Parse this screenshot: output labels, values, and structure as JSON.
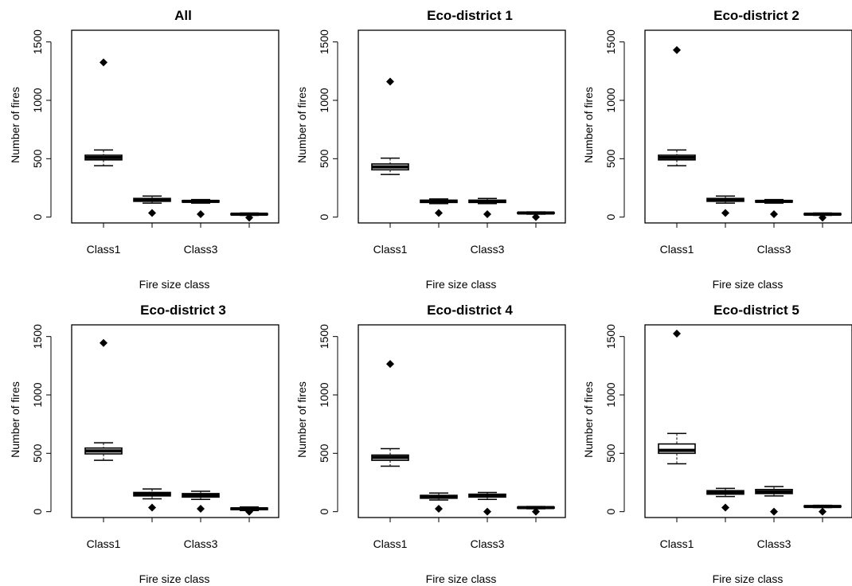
{
  "chart_data": [
    {
      "type": "box",
      "title": "All",
      "xlabel": "Fire size class",
      "ylabel": "Number of fires",
      "ylim": [
        -50,
        1600
      ],
      "yticks": [
        0,
        500,
        1000,
        1500
      ],
      "xtick_labels": [
        "Class1",
        "",
        "Class3",
        ""
      ],
      "boxes": [
        {
          "lower_whisker": 440,
          "q1": 490,
          "median": 510,
          "q3": 530,
          "upper_whisker": 575,
          "outliers": [
            1325
          ]
        },
        {
          "lower_whisker": 120,
          "q1": 135,
          "median": 148,
          "q3": 160,
          "upper_whisker": 180,
          "outliers": [
            35
          ]
        },
        {
          "lower_whisker": 120,
          "q1": 128,
          "median": 135,
          "q3": 142,
          "upper_whisker": 150,
          "outliers": [
            25
          ]
        },
        {
          "lower_whisker": 15,
          "q1": 20,
          "median": 25,
          "q3": 30,
          "upper_whisker": 35,
          "outliers": [
            -5
          ]
        }
      ]
    },
    {
      "type": "box",
      "title": "Eco-district 1",
      "xlabel": "Fire size class",
      "ylabel": "Number of fires",
      "ylim": [
        -50,
        1600
      ],
      "yticks": [
        0,
        500,
        1000,
        1500
      ],
      "xtick_labels": [
        "Class1",
        "",
        "Class3",
        ""
      ],
      "boxes": [
        {
          "lower_whisker": 365,
          "q1": 405,
          "median": 430,
          "q3": 455,
          "upper_whisker": 505,
          "outliers": [
            1160
          ]
        },
        {
          "lower_whisker": 115,
          "q1": 125,
          "median": 135,
          "q3": 145,
          "upper_whisker": 155,
          "outliers": [
            35
          ]
        },
        {
          "lower_whisker": 115,
          "q1": 125,
          "median": 135,
          "q3": 145,
          "upper_whisker": 160,
          "outliers": [
            25
          ]
        },
        {
          "lower_whisker": 25,
          "q1": 30,
          "median": 35,
          "q3": 40,
          "upper_whisker": 45,
          "outliers": [
            0
          ]
        }
      ]
    },
    {
      "type": "box",
      "title": "Eco-district 2",
      "xlabel": "Fire size class",
      "ylabel": "Number of fires",
      "ylim": [
        -50,
        1600
      ],
      "yticks": [
        0,
        500,
        1000,
        1500
      ],
      "xtick_labels": [
        "Class1",
        "",
        "Class3",
        ""
      ],
      "boxes": [
        {
          "lower_whisker": 440,
          "q1": 490,
          "median": 510,
          "q3": 530,
          "upper_whisker": 575,
          "outliers": [
            1430
          ]
        },
        {
          "lower_whisker": 120,
          "q1": 135,
          "median": 148,
          "q3": 160,
          "upper_whisker": 180,
          "outliers": [
            35
          ]
        },
        {
          "lower_whisker": 120,
          "q1": 128,
          "median": 135,
          "q3": 142,
          "upper_whisker": 150,
          "outliers": [
            25
          ]
        },
        {
          "lower_whisker": 15,
          "q1": 20,
          "median": 25,
          "q3": 30,
          "upper_whisker": 35,
          "outliers": [
            -5
          ]
        }
      ]
    },
    {
      "type": "box",
      "title": "Eco-district 3",
      "xlabel": "Fire size class",
      "ylabel": "Number of fires",
      "ylim": [
        -50,
        1600
      ],
      "yticks": [
        0,
        500,
        1000,
        1500
      ],
      "xtick_labels": [
        "Class1",
        "",
        "Class3",
        ""
      ],
      "boxes": [
        {
          "lower_whisker": 440,
          "q1": 495,
          "median": 520,
          "q3": 545,
          "upper_whisker": 590,
          "outliers": [
            1445
          ]
        },
        {
          "lower_whisker": 110,
          "q1": 135,
          "median": 150,
          "q3": 165,
          "upper_whisker": 195,
          "outliers": [
            35
          ]
        },
        {
          "lower_whisker": 105,
          "q1": 125,
          "median": 140,
          "q3": 155,
          "upper_whisker": 175,
          "outliers": [
            25
          ]
        },
        {
          "lower_whisker": 10,
          "q1": 18,
          "median": 25,
          "q3": 32,
          "upper_whisker": 40,
          "outliers": [
            0
          ]
        }
      ]
    },
    {
      "type": "box",
      "title": "Eco-district 4",
      "xlabel": "Fire size class",
      "ylabel": "Number of fires",
      "ylim": [
        -50,
        1600
      ],
      "yticks": [
        0,
        500,
        1000,
        1500
      ],
      "xtick_labels": [
        "Class1",
        "",
        "Class3",
        ""
      ],
      "boxes": [
        {
          "lower_whisker": 390,
          "q1": 440,
          "median": 465,
          "q3": 485,
          "upper_whisker": 540,
          "outliers": [
            1265
          ]
        },
        {
          "lower_whisker": 100,
          "q1": 115,
          "median": 128,
          "q3": 140,
          "upper_whisker": 160,
          "outliers": [
            25
          ]
        },
        {
          "lower_whisker": 105,
          "q1": 125,
          "median": 138,
          "q3": 150,
          "upper_whisker": 165,
          "outliers": [
            0
          ]
        },
        {
          "lower_whisker": 25,
          "q1": 30,
          "median": 35,
          "q3": 40,
          "upper_whisker": 45,
          "outliers": [
            0
          ]
        }
      ]
    },
    {
      "type": "box",
      "title": "Eco-district 5",
      "xlabel": "Fire size class",
      "ylabel": "Number of fires",
      "ylim": [
        -50,
        1600
      ],
      "yticks": [
        0,
        500,
        1000,
        1500
      ],
      "xtick_labels": [
        "Class1",
        "",
        "Class3",
        ""
      ],
      "boxes": [
        {
          "lower_whisker": 410,
          "q1": 500,
          "median": 525,
          "q3": 580,
          "upper_whisker": 670,
          "outliers": [
            1525
          ]
        },
        {
          "lower_whisker": 130,
          "q1": 150,
          "median": 165,
          "q3": 180,
          "upper_whisker": 200,
          "outliers": [
            35
          ]
        },
        {
          "lower_whisker": 135,
          "q1": 155,
          "median": 170,
          "q3": 190,
          "upper_whisker": 215,
          "outliers": [
            0
          ]
        },
        {
          "lower_whisker": 35,
          "q1": 40,
          "median": 45,
          "q3": 50,
          "upper_whisker": 55,
          "outliers": [
            0
          ]
        }
      ]
    }
  ]
}
